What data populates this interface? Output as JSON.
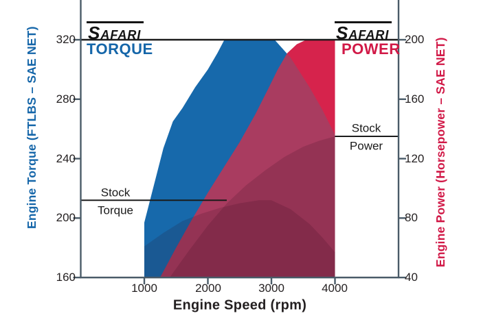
{
  "chart_data": {
    "type": "area",
    "description": "Engine dyno comparison chart: Safari torque and power curves vs stock peak levels",
    "x_axis": {
      "label": "Engine Speed (rpm)",
      "ticks": [
        "1000",
        "2000",
        "3000",
        "4000"
      ],
      "tick_values": [
        1000,
        2000,
        3000,
        4000
      ],
      "range_rpm": [
        0,
        5000
      ]
    },
    "y_left": {
      "label": "Engine Torque (FTLBS – SAE NET)",
      "ticks": [
        "160",
        "200",
        "240",
        "280",
        "320"
      ],
      "tick_values": [
        160,
        200,
        240,
        280,
        320
      ],
      "range": [
        160,
        347
      ]
    },
    "y_right": {
      "label": "Engine Power (Horsepower – SAE NET)",
      "ticks": [
        "40",
        "80",
        "120",
        "160",
        "200"
      ],
      "tick_values": [
        40,
        80,
        120,
        160,
        200
      ],
      "range": [
        40,
        227
      ]
    },
    "legend": {
      "torque_brand": "SAFARI",
      "torque_word": "TORQUE",
      "power_brand": "SAFARI",
      "power_word": "POWER"
    },
    "series": [
      {
        "name": "safari_torque",
        "axis": "torque",
        "units": "ftlb",
        "points": [
          [
            1000,
            197
          ],
          [
            1150,
            222
          ],
          [
            1300,
            247
          ],
          [
            1450,
            265
          ],
          [
            1600,
            274
          ],
          [
            1800,
            288
          ],
          [
            2000,
            300
          ],
          [
            2150,
            311
          ],
          [
            2260,
            320
          ],
          [
            3050,
            320
          ],
          [
            3300,
            308
          ],
          [
            3600,
            288
          ],
          [
            3800,
            273
          ],
          [
            4000,
            256
          ]
        ]
      },
      {
        "name": "safari_power",
        "axis": "power",
        "units": "hp",
        "points": [
          [
            1250,
            40
          ],
          [
            1500,
            60
          ],
          [
            1750,
            79
          ],
          [
            2000,
            97
          ],
          [
            2250,
            114
          ],
          [
            2500,
            131
          ],
          [
            2750,
            150
          ],
          [
            2950,
            167
          ],
          [
            3100,
            180
          ],
          [
            3250,
            191
          ],
          [
            3400,
            197
          ],
          [
            3550,
            200
          ],
          [
            4000,
            200
          ]
        ]
      },
      {
        "name": "stock_torque",
        "axis": "torque",
        "units": "ftlb",
        "points": [
          [
            1000,
            181
          ],
          [
            1300,
            190
          ],
          [
            1600,
            198
          ],
          [
            1900,
            203
          ],
          [
            2200,
            207
          ],
          [
            2500,
            210
          ],
          [
            2800,
            212
          ],
          [
            3000,
            212
          ],
          [
            3300,
            206
          ],
          [
            3600,
            196
          ],
          [
            3800,
            187
          ],
          [
            4000,
            177
          ]
        ]
      },
      {
        "name": "stock_power",
        "axis": "power",
        "units": "hp",
        "points": [
          [
            1400,
            40
          ],
          [
            1700,
            58
          ],
          [
            2000,
            75
          ],
          [
            2300,
            90
          ],
          [
            2600,
            102
          ],
          [
            2900,
            112
          ],
          [
            3200,
            121
          ],
          [
            3500,
            128
          ],
          [
            3750,
            132
          ],
          [
            4000,
            135
          ]
        ]
      }
    ],
    "annotations": {
      "peak": {
        "torque": 320,
        "power": 200
      },
      "stock_torque": {
        "line1": "Stock",
        "line2": "Torque",
        "value": 212
      },
      "stock_power": {
        "line1": "Stock",
        "line2": "Power",
        "value": 135
      }
    },
    "colors": {
      "blue": "#1769AB",
      "crimson": "#D6234C",
      "overlap_maroon": "#A93C60",
      "stock_overlay": "#2A0618",
      "axis": "#4A5B68",
      "text": "#231F20",
      "ref_line": "#1A1A1A",
      "torque_label": "#1566A9",
      "power_label": "#D11947"
    },
    "layout_hints": {
      "grid": false,
      "legend_position": "inside-top",
      "top_rule_spans_plot": true
    }
  }
}
